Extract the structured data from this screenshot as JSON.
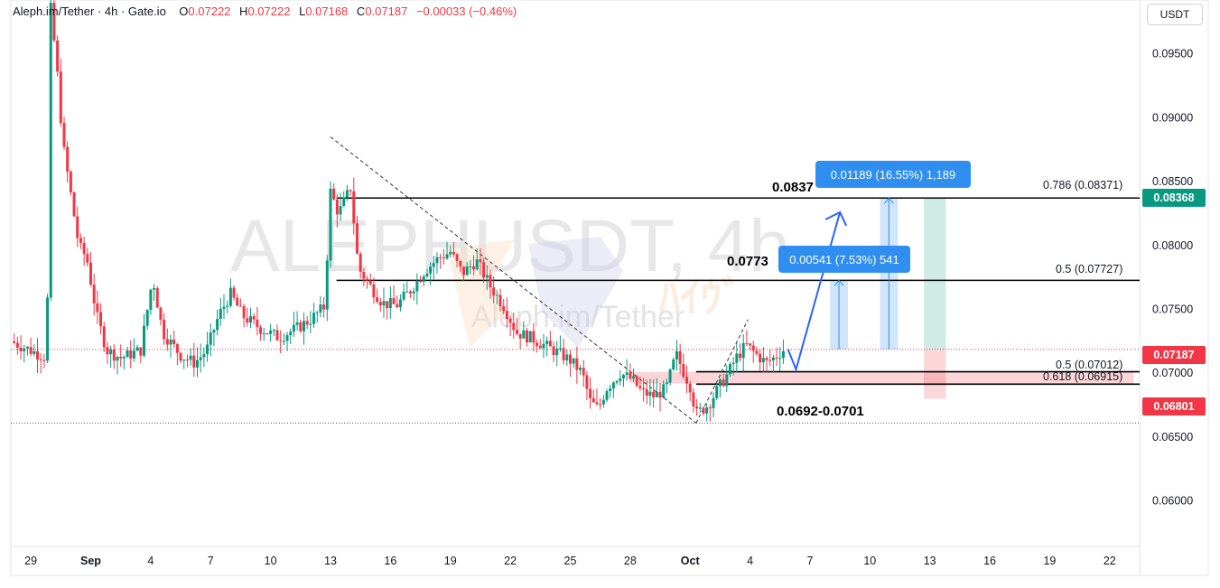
{
  "legend": {
    "symbol": "Aleph.im/Tether · 4h · Gate.io",
    "o_label": "O",
    "o_value": "0.07222",
    "h_label": "H",
    "h_value": "0.07222",
    "l_label": "L",
    "l_value": "0.07168",
    "c_label": "C",
    "c_value": "0.07187",
    "change": "−0.00033 (−0.46%)"
  },
  "currency": "USDT",
  "watermark": {
    "ticker": "ALEPHUSDT, 4h",
    "name": "Aleph.im/Tether"
  },
  "colors": {
    "up": "#089981",
    "down": "#f23645",
    "callout": "#2f8ef0",
    "zone": "#f7b3b8"
  },
  "price_badges": [
    {
      "value": "0.08368",
      "price": 0.08368,
      "color": "#089981"
    },
    {
      "value": "0.07187",
      "price": 0.07187,
      "color": "#f23645"
    },
    {
      "value": "0.06801",
      "price": 0.06801,
      "color": "#f23645"
    }
  ],
  "annotations": {
    "target_high": "0.0837",
    "target_mid": "0.0773",
    "zone": "0.0692-0.0701",
    "callout_high": "0.01189 (16.55%) 1,189",
    "callout_mid": "0.00541 (7.53%) 541",
    "fib_786": "0.786 (0.08371)",
    "fib_5_high": "0.5 (0.07727)",
    "fib_5_low": "0.5 (0.07012)",
    "fib_618": "0.618 (0.06915)"
  },
  "chart_data": {
    "type": "candlestick",
    "title": "Aleph.im/Tether · 4h · Gate.io",
    "ylim": [
      0.0568,
      0.0985
    ],
    "y_ticks": [
      "0.09500",
      "0.09000",
      "0.08500",
      "0.08000",
      "0.07500",
      "0.07000",
      "0.06500",
      "0.06000"
    ],
    "y_tick_values": [
      0.095,
      0.09,
      0.085,
      0.08,
      0.075,
      0.07,
      0.065,
      0.06
    ],
    "x_ticks": [
      "29",
      "Sep",
      "4",
      "7",
      "10",
      "13",
      "16",
      "19",
      "22",
      "25",
      "28",
      "Oct",
      "4",
      "7",
      "10",
      "13",
      "16",
      "19",
      "22"
    ],
    "x_tick_days": [
      0,
      3,
      6,
      9,
      12,
      15,
      18,
      21,
      24,
      27,
      30,
      33,
      36,
      39,
      42,
      45,
      48,
      51,
      54
    ],
    "x_range_days": [
      -1,
      55.5
    ],
    "grid": false,
    "levels": {
      "fib_786": 0.08371,
      "fib_5_high": 0.07727,
      "fib_5_low": 0.07012,
      "fib_618": 0.06915,
      "last": 0.07187,
      "swing_low": 0.0661
    },
    "close_path": [
      [
        -1,
        0.0725
      ],
      [
        0.8,
        0.0712
      ],
      [
        1.0,
        0.0985
      ],
      [
        1.3,
        0.094
      ],
      [
        1.6,
        0.088
      ],
      [
        2.0,
        0.084
      ],
      [
        2.4,
        0.08
      ],
      [
        2.8,
        0.079
      ],
      [
        3.3,
        0.0745
      ],
      [
        3.8,
        0.0718
      ],
      [
        4.5,
        0.0712
      ],
      [
        5.5,
        0.0718
      ],
      [
        6.1,
        0.0775
      ],
      [
        6.6,
        0.0732
      ],
      [
        7.5,
        0.0714
      ],
      [
        8.2,
        0.0708
      ],
      [
        8.8,
        0.0718
      ],
      [
        9.4,
        0.0745
      ],
      [
        10.0,
        0.0762
      ],
      [
        10.6,
        0.0745
      ],
      [
        11.5,
        0.0735
      ],
      [
        12.4,
        0.0728
      ],
      [
        13.3,
        0.0735
      ],
      [
        14.0,
        0.0742
      ],
      [
        14.7,
        0.0752
      ],
      [
        15.0,
        0.0842
      ],
      [
        15.4,
        0.0825
      ],
      [
        16.0,
        0.0845
      ],
      [
        16.4,
        0.0782
      ],
      [
        17.0,
        0.0768
      ],
      [
        17.6,
        0.0755
      ],
      [
        18.3,
        0.0753
      ],
      [
        19.0,
        0.0765
      ],
      [
        19.7,
        0.078
      ],
      [
        20.4,
        0.079
      ],
      [
        21.0,
        0.0795
      ],
      [
        21.6,
        0.0778
      ],
      [
        22.3,
        0.0788
      ],
      [
        23.0,
        0.0768
      ],
      [
        23.7,
        0.0752
      ],
      [
        24.3,
        0.0732
      ],
      [
        25.0,
        0.0728
      ],
      [
        25.7,
        0.0722
      ],
      [
        26.4,
        0.0716
      ],
      [
        27.0,
        0.071
      ],
      [
        27.6,
        0.07
      ],
      [
        28.0,
        0.0678
      ],
      [
        28.4,
        0.0672
      ],
      [
        28.8,
        0.0688
      ],
      [
        29.5,
        0.07
      ],
      [
        30.1,
        0.0695
      ],
      [
        30.6,
        0.0685
      ],
      [
        31.2,
        0.0682
      ],
      [
        31.8,
        0.0688
      ],
      [
        32.3,
        0.0715
      ],
      [
        32.7,
        0.07
      ],
      [
        33.0,
        0.069
      ],
      [
        33.3,
        0.0668
      ],
      [
        33.9,
        0.0675
      ],
      [
        34.4,
        0.0688
      ],
      [
        34.9,
        0.07
      ],
      [
        35.3,
        0.0712
      ],
      [
        35.8,
        0.0722
      ],
      [
        36.3,
        0.0715
      ],
      [
        36.8,
        0.0708
      ],
      [
        37.2,
        0.0712
      ],
      [
        37.7,
        0.07187
      ]
    ],
    "overlay_paths": [
      {
        "name": "projection",
        "points": [
          [
            37.9,
            0.07187
          ],
          [
            38.3,
            0.0703
          ],
          [
            40.5,
            0.0826
          ]
        ]
      }
    ]
  }
}
